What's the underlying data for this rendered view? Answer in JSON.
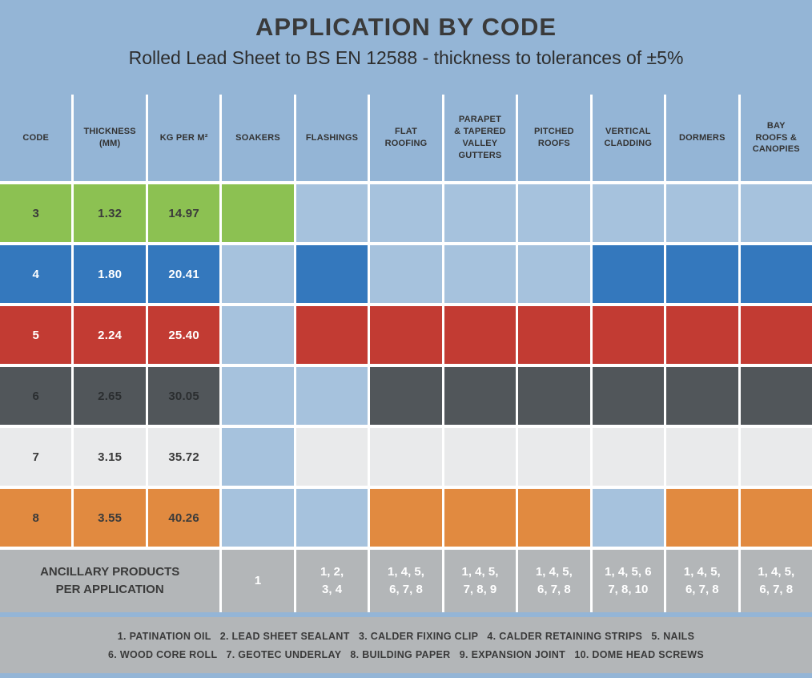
{
  "title": "APPLICATION BY CODE",
  "subtitle": "Rolled Lead Sheet to BS EN 12588 - thickness to tolerances of ±5%",
  "colors": {
    "page_background_blue": "#94b5d6",
    "unfilled_cell_blue": "#a6c2dd",
    "code3_green": "#8cc152",
    "code4_blue": "#3478bd",
    "code5_red": "#c23b33",
    "code6_dark_gray": "#51565a",
    "code7_light_gray": "#e9eaeb",
    "code8_orange": "#e18a40",
    "ancillary_gray": "#b3b6b8",
    "grid_border_white": "#ffffff"
  },
  "headers": [
    "CODE",
    "THICKNESS\n(MM)",
    "KG PER M²",
    "SOAKERS",
    "FLASHINGS",
    "FLAT\nROOFING",
    "PARAPET\n& TAPERED\nVALLEY\nGUTTERS",
    "PITCHED\nROOFS",
    "VERTICAL\nCLADDING",
    "DORMERS",
    "BAY\nROOFS &\nCANOPIES"
  ],
  "rows": [
    {
      "code": "3",
      "thickness": "1.32",
      "kg": "14.97",
      "color": "#8cc152",
      "fill": {
        "soakers": "#8cc152",
        "flashings": "#a6c2dd",
        "flat_roofing": "#a6c2dd",
        "parapet_gutters": "#a6c2dd",
        "pitched_roofs": "#a6c2dd",
        "vertical_cladding": "#a6c2dd",
        "dormers": "#a6c2dd",
        "bay_roofs": "#a6c2dd"
      }
    },
    {
      "code": "4",
      "thickness": "1.80",
      "kg": "20.41",
      "color": "#3478bd",
      "fill": {
        "soakers": "#a6c2dd",
        "flashings": "#3478bd",
        "flat_roofing": "#a6c2dd",
        "parapet_gutters": "#a6c2dd",
        "pitched_roofs": "#a6c2dd",
        "vertical_cladding": "#3478bd",
        "dormers": "#3478bd",
        "bay_roofs": "#3478bd"
      }
    },
    {
      "code": "5",
      "thickness": "2.24",
      "kg": "25.40",
      "color": "#c23b33",
      "fill": {
        "soakers": "#a6c2dd",
        "flashings": "#c23b33",
        "flat_roofing": "#c23b33",
        "parapet_gutters": "#c23b33",
        "pitched_roofs": "#c23b33",
        "vertical_cladding": "#c23b33",
        "dormers": "#c23b33",
        "bay_roofs": "#c23b33"
      }
    },
    {
      "code": "6",
      "thickness": "2.65",
      "kg": "30.05",
      "color": "#51565a",
      "fill": {
        "soakers": "#a6c2dd",
        "flashings": "#a6c2dd",
        "flat_roofing": "#51565a",
        "parapet_gutters": "#51565a",
        "pitched_roofs": "#51565a",
        "vertical_cladding": "#51565a",
        "dormers": "#51565a",
        "bay_roofs": "#51565a"
      }
    },
    {
      "code": "7",
      "thickness": "3.15",
      "kg": "35.72",
      "color": "#e9eaeb",
      "fill": {
        "soakers": "#a6c2dd",
        "flashings": "#e9eaeb",
        "flat_roofing": "#e9eaeb",
        "parapet_gutters": "#e9eaeb",
        "pitched_roofs": "#e9eaeb",
        "vertical_cladding": "#e9eaeb",
        "dormers": "#e9eaeb",
        "bay_roofs": "#e9eaeb"
      }
    },
    {
      "code": "8",
      "thickness": "3.55",
      "kg": "40.26",
      "color": "#e18a40",
      "fill": {
        "soakers": "#a6c2dd",
        "flashings": "#a6c2dd",
        "flat_roofing": "#e18a40",
        "parapet_gutters": "#e18a40",
        "pitched_roofs": "#e18a40",
        "vertical_cladding": "#a6c2dd",
        "dormers": "#e18a40",
        "bay_roofs": "#e18a40"
      }
    }
  ],
  "ancillary": {
    "label": "ANCILLARY PRODUCTS\nPER APPLICATION",
    "values": {
      "soakers": "1",
      "flashings": "1, 2,\n3, 4",
      "flat_roofing": "1, 4, 5,\n6, 7, 8",
      "parapet_gutters": "1, 4, 5,\n7, 8, 9",
      "pitched_roofs": "1, 4, 5,\n6, 7, 8",
      "vertical_cladding": "1, 4, 5, 6\n7, 8, 10",
      "dormers": "1, 4, 5,\n6, 7, 8",
      "bay_roofs": "1, 4, 5,\n6, 7, 8"
    }
  },
  "footer": {
    "line1": "1. PATINATION OIL   2. LEAD SHEET SEALANT   3. CALDER FIXING CLIP   4. CALDER RETAINING STRIPS   5. NAILS",
    "line2": "6. WOOD CORE ROLL   7. GEOTEC UNDERLAY   8. BUILDING PAPER   9. EXPANSION JOINT   10. DOME HEAD SCREWS"
  },
  "chart_data": {
    "type": "table",
    "title": "APPLICATION BY CODE",
    "subtitle": "Rolled Lead Sheet to BS EN 12588 - thickness to tolerances of ±5%",
    "columns": [
      "CODE",
      "THICKNESS (MM)",
      "KG PER M²",
      "SOAKERS",
      "FLASHINGS",
      "FLAT ROOFING",
      "PARAPET & TAPERED VALLEY GUTTERS",
      "PITCHED ROOFS",
      "VERTICAL CLADDING",
      "DORMERS",
      "BAY ROOFS & CANOPIES"
    ],
    "rows": [
      {
        "code": 3,
        "thickness_mm": 1.32,
        "kg_per_m2": 14.97,
        "row_color": "#8cc152",
        "applications": [
          "SOAKERS"
        ]
      },
      {
        "code": 4,
        "thickness_mm": 1.8,
        "kg_per_m2": 20.41,
        "row_color": "#3478bd",
        "applications": [
          "FLASHINGS",
          "VERTICAL CLADDING",
          "DORMERS",
          "BAY ROOFS & CANOPIES"
        ]
      },
      {
        "code": 5,
        "thickness_mm": 2.24,
        "kg_per_m2": 25.4,
        "row_color": "#c23b33",
        "applications": [
          "FLASHINGS",
          "FLAT ROOFING",
          "PARAPET & TAPERED VALLEY GUTTERS",
          "PITCHED ROOFS",
          "VERTICAL CLADDING",
          "DORMERS",
          "BAY ROOFS & CANOPIES"
        ]
      },
      {
        "code": 6,
        "thickness_mm": 2.65,
        "kg_per_m2": 30.05,
        "row_color": "#51565a",
        "applications": [
          "FLAT ROOFING",
          "PARAPET & TAPERED VALLEY GUTTERS",
          "PITCHED ROOFS",
          "VERTICAL CLADDING",
          "DORMERS",
          "BAY ROOFS & CANOPIES"
        ]
      },
      {
        "code": 7,
        "thickness_mm": 3.15,
        "kg_per_m2": 35.72,
        "row_color": "#e9eaeb",
        "applications": [
          "FLASHINGS",
          "FLAT ROOFING",
          "PARAPET & TAPERED VALLEY GUTTERS",
          "PITCHED ROOFS",
          "VERTICAL CLADDING",
          "DORMERS",
          "BAY ROOFS & CANOPIES"
        ]
      },
      {
        "code": 8,
        "thickness_mm": 3.55,
        "kg_per_m2": 40.26,
        "row_color": "#e18a40",
        "applications": [
          "FLAT ROOFING",
          "PARAPET & TAPERED VALLEY GUTTERS",
          "PITCHED ROOFS",
          "DORMERS",
          "BAY ROOFS & CANOPIES"
        ]
      }
    ],
    "ancillary_products_per_application": {
      "SOAKERS": [
        1
      ],
      "FLASHINGS": [
        1,
        2,
        3,
        4
      ],
      "FLAT ROOFING": [
        1,
        4,
        5,
        6,
        7,
        8
      ],
      "PARAPET & TAPERED VALLEY GUTTERS": [
        1,
        4,
        5,
        7,
        8,
        9
      ],
      "PITCHED ROOFS": [
        1,
        4,
        5,
        6,
        7,
        8
      ],
      "VERTICAL CLADDING": [
        1,
        4,
        5,
        6,
        7,
        8,
        10
      ],
      "DORMERS": [
        1,
        4,
        5,
        6,
        7,
        8
      ],
      "BAY ROOFS & CANOPIES": [
        1,
        4,
        5,
        6,
        7,
        8
      ]
    },
    "ancillary_products_legend": [
      {
        "number": 1,
        "product": "PATINATION OIL"
      },
      {
        "number": 2,
        "product": "LEAD SHEET SEALANT"
      },
      {
        "number": 3,
        "product": "CALDER FIXING CLIP"
      },
      {
        "number": 4,
        "product": "CALDER RETAINING STRIPS"
      },
      {
        "number": 5,
        "product": "NAILS"
      },
      {
        "number": 6,
        "product": "WOOD CORE ROLL"
      },
      {
        "number": 7,
        "product": "GEOTEC UNDERLAY"
      },
      {
        "number": 8,
        "product": "BUILDING PAPER"
      },
      {
        "number": 9,
        "product": "EXPANSION JOINT"
      },
      {
        "number": 10,
        "product": "DOME HEAD SCREWS"
      }
    ]
  }
}
